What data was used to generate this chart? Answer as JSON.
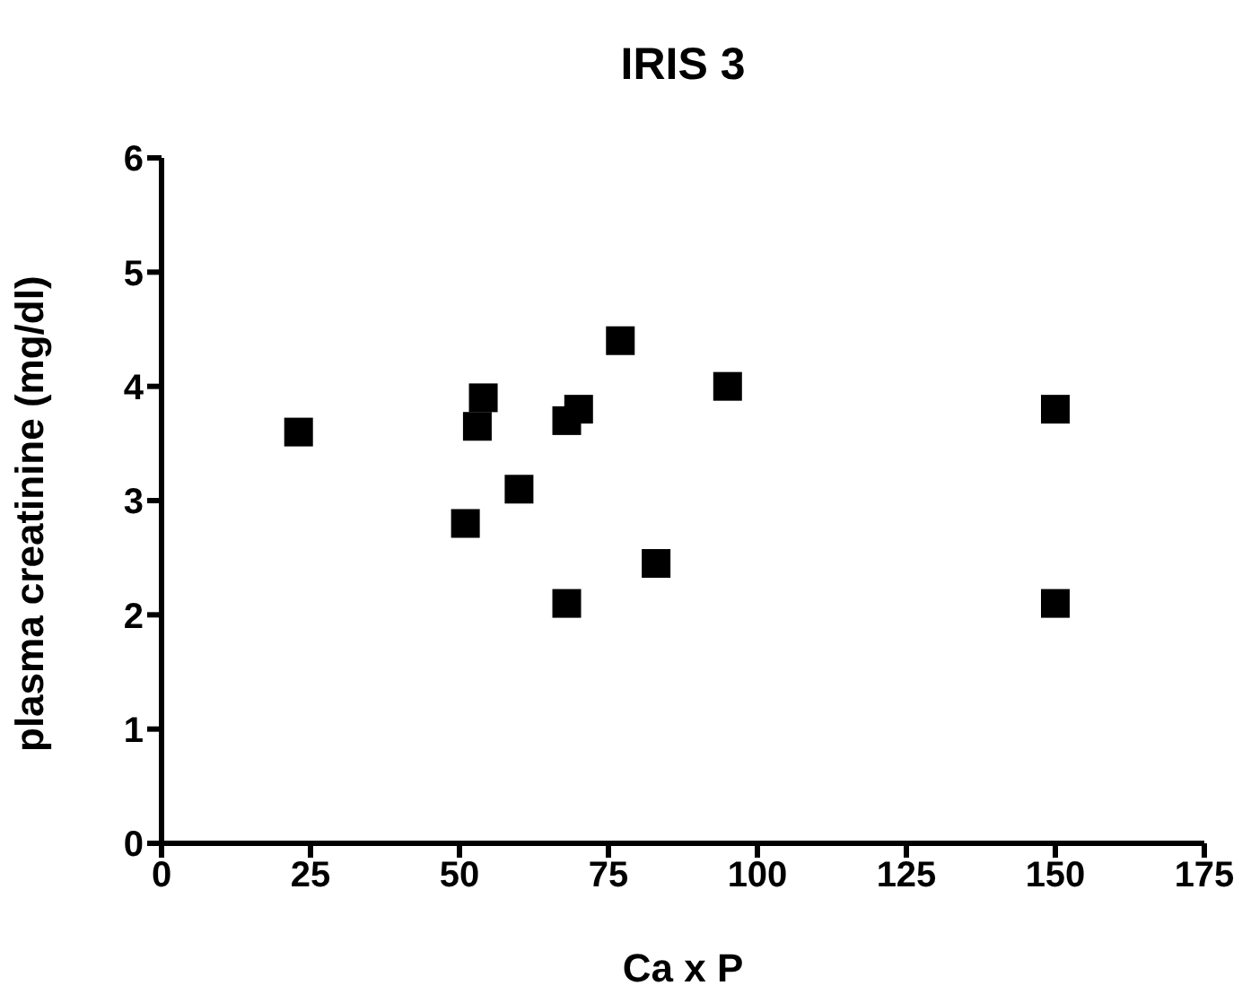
{
  "chart_data": {
    "type": "scatter",
    "title": "IRIS 3",
    "xlabel": "Ca x P",
    "ylabel": "plasma creatinine (mg/dl)",
    "x": [
      23,
      51,
      53,
      54,
      60,
      68,
      68,
      70,
      77,
      83,
      95,
      150,
      150
    ],
    "values": [
      3.6,
      2.8,
      3.65,
      3.9,
      3.1,
      3.7,
      2.1,
      3.8,
      4.4,
      2.45,
      4.0,
      3.8,
      2.1
    ],
    "color": "#000000",
    "marker": "square",
    "grid": false,
    "xlim": [
      0,
      175
    ],
    "xticks": [
      0,
      25,
      50,
      75,
      100,
      125,
      150,
      175
    ],
    "ylim": [
      0,
      6
    ],
    "yticks": [
      0,
      1,
      2,
      3,
      4,
      5,
      6
    ]
  }
}
